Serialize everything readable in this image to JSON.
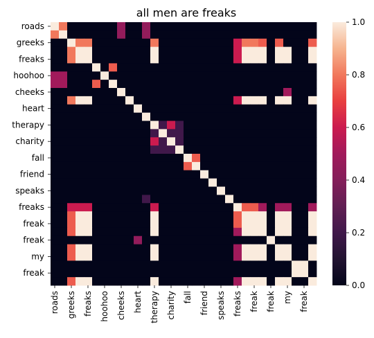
{
  "chart_data": {
    "type": "heatmap",
    "title": "all men are freaks",
    "xlabel": "",
    "ylabel": "",
    "labels": [
      "roads",
      "",
      "greeks",
      "",
      "freaks",
      "",
      "hoohoo",
      "",
      "cheeks",
      "",
      "heart",
      "",
      "therapy",
      "",
      "charity",
      "",
      "fall",
      "",
      "friend",
      "",
      "speaks",
      "",
      "freaks",
      "",
      "freak",
      "",
      "freak",
      "",
      "my",
      "",
      "freak",
      ""
    ],
    "x_tick_labels": [
      "roads",
      "greeks",
      "freaks",
      "hoohoo",
      "cheeks",
      "heart",
      "therapy",
      "charity",
      "fall",
      "friend",
      "speaks",
      "freaks",
      "freak",
      "freak",
      "my",
      "freak"
    ],
    "y_tick_labels": [
      "roads",
      "greeks",
      "freaks",
      "hoohoo",
      "cheeks",
      "heart",
      "therapy",
      "charity",
      "fall",
      "friend",
      "speaks",
      "freaks",
      "freak",
      "freak",
      "my",
      "freak"
    ],
    "colorbar": {
      "min": 0.0,
      "max": 1.0,
      "ticks": [
        "0.0",
        "0.2",
        "0.4",
        "0.6",
        "0.8",
        "1.0"
      ],
      "colormap": "rocket"
    },
    "matrix": [
      [
        1.0,
        0.8,
        0,
        0,
        0,
        0,
        0,
        0,
        0.45,
        0,
        0,
        0.45,
        0,
        0,
        0,
        0,
        0,
        0,
        0,
        0,
        0,
        0,
        0,
        0,
        0,
        0,
        0,
        0,
        0,
        0,
        0,
        0
      ],
      [
        0.8,
        1.0,
        0,
        0,
        0,
        0,
        0,
        0,
        0.45,
        0,
        0,
        0.45,
        0,
        0,
        0,
        0,
        0,
        0,
        0,
        0,
        0,
        0,
        0,
        0,
        0,
        0,
        0,
        0,
        0,
        0,
        0,
        0
      ],
      [
        0,
        0,
        1.0,
        0.8,
        0.8,
        0,
        0,
        0,
        0,
        0,
        0,
        0,
        0.8,
        0,
        0,
        0,
        0,
        0,
        0,
        0,
        0,
        0,
        0.6,
        0.8,
        0.8,
        0.75,
        0,
        0.75,
        0,
        0,
        0,
        0.75
      ],
      [
        0,
        0,
        0.8,
        1.0,
        1.0,
        0,
        0,
        0,
        0,
        0,
        0,
        0,
        1.0,
        0,
        0,
        0,
        0,
        0,
        0,
        0,
        0,
        0,
        0.6,
        1.0,
        1.0,
        1.0,
        0,
        1.0,
        1.0,
        0,
        0,
        1.0
      ],
      [
        0,
        0,
        0.8,
        1.0,
        1.0,
        0,
        0,
        0,
        0,
        0,
        0,
        0,
        1.0,
        0,
        0,
        0,
        0,
        0,
        0,
        0,
        0,
        0,
        0.6,
        1.0,
        1.0,
        1.0,
        0,
        1.0,
        1.0,
        0,
        0,
        1.0
      ],
      [
        0,
        0,
        0,
        0,
        0,
        1.0,
        0,
        0.75,
        0,
        0,
        0,
        0,
        0,
        0,
        0,
        0,
        0,
        0,
        0,
        0,
        0,
        0,
        0,
        0,
        0,
        0,
        0,
        0,
        0,
        0,
        0,
        0
      ],
      [
        0.5,
        0.5,
        0,
        0,
        0,
        0,
        1.0,
        0,
        0,
        0,
        0,
        0,
        0,
        0,
        0,
        0,
        0,
        0,
        0,
        0,
        0,
        0,
        0,
        0,
        0,
        0,
        0,
        0,
        0,
        0,
        0,
        0
      ],
      [
        0.5,
        0.5,
        0,
        0,
        0,
        0.75,
        0,
        1.0,
        0,
        0,
        0,
        0,
        0,
        0,
        0,
        0,
        0,
        0,
        0,
        0,
        0,
        0,
        0,
        0,
        0,
        0,
        0,
        0,
        0,
        0,
        0,
        0
      ],
      [
        0,
        0,
        0,
        0,
        0,
        0,
        0,
        0,
        1.0,
        0,
        0,
        0,
        0,
        0,
        0,
        0,
        0,
        0,
        0,
        0,
        0,
        0,
        0,
        0,
        0,
        0,
        0,
        0,
        0.5,
        0,
        0,
        0
      ],
      [
        0,
        0,
        0.8,
        1.0,
        1.0,
        0,
        0,
        0,
        0,
        1.0,
        0,
        0,
        0,
        0,
        0,
        0,
        0,
        0,
        0,
        0,
        0,
        0,
        0.6,
        1.0,
        1.0,
        1.0,
        0,
        1.0,
        1.0,
        0,
        0,
        1.0
      ],
      [
        0,
        0,
        0,
        0,
        0,
        0,
        0,
        0,
        0,
        0,
        1.0,
        0,
        0,
        0,
        0,
        0,
        0,
        0,
        0,
        0,
        0,
        0,
        0,
        0,
        0,
        0,
        0,
        0,
        0,
        0,
        0,
        0
      ],
      [
        0,
        0,
        0,
        0,
        0,
        0,
        0,
        0,
        0,
        0,
        0,
        1.0,
        0,
        0,
        0,
        0,
        0,
        0,
        0,
        0,
        0,
        0,
        0,
        0,
        0,
        0,
        0,
        0,
        0,
        0,
        0,
        0
      ],
      [
        0,
        0,
        0,
        0,
        0,
        0,
        0,
        0,
        0,
        0,
        0,
        0,
        1.0,
        0.2,
        0.6,
        0.2,
        0,
        0,
        0,
        0,
        0,
        0,
        0,
        0,
        0,
        0,
        0,
        0,
        0,
        0,
        0,
        0
      ],
      [
        0,
        0,
        0,
        0,
        0,
        0,
        0,
        0,
        0,
        0,
        0,
        0,
        0.2,
        1.0,
        0.2,
        0.2,
        0,
        0,
        0,
        0,
        0,
        0,
        0,
        0,
        0,
        0,
        0,
        0,
        0,
        0,
        0,
        0
      ],
      [
        0,
        0,
        0,
        0,
        0,
        0,
        0,
        0,
        0,
        0,
        0,
        0,
        0.6,
        0.2,
        1.0,
        0.2,
        0,
        0,
        0,
        0,
        0,
        0,
        0,
        0,
        0,
        0,
        0,
        0,
        0,
        0,
        0,
        0
      ],
      [
        0,
        0,
        0,
        0,
        0,
        0,
        0,
        0,
        0,
        0,
        0,
        0,
        0.2,
        0.2,
        0.2,
        1.0,
        0,
        0,
        0,
        0,
        0,
        0,
        0,
        0,
        0,
        0,
        0,
        0,
        0,
        0,
        0,
        0
      ],
      [
        0,
        0,
        0,
        0,
        0,
        0,
        0,
        0,
        0,
        0,
        0,
        0,
        0,
        0,
        0,
        0,
        1.0,
        0.75,
        0,
        0,
        0,
        0,
        0,
        0,
        0,
        0,
        0,
        0,
        0,
        0,
        0,
        0
      ],
      [
        0,
        0,
        0,
        0,
        0,
        0,
        0,
        0,
        0,
        0,
        0,
        0,
        0,
        0,
        0,
        0,
        0.75,
        1.0,
        0,
        0,
        0,
        0,
        0,
        0,
        0,
        0,
        0,
        0,
        0,
        0,
        0,
        0
      ],
      [
        0,
        0,
        0,
        0,
        0,
        0,
        0,
        0,
        0,
        0,
        0,
        0,
        0,
        0,
        0,
        0,
        0,
        0,
        1.0,
        0,
        0,
        0,
        0,
        0,
        0,
        0,
        0,
        0,
        0,
        0,
        0,
        0
      ],
      [
        0,
        0,
        0,
        0,
        0,
        0,
        0,
        0,
        0,
        0,
        0,
        0,
        0,
        0,
        0,
        0,
        0,
        0,
        0,
        1.0,
        0,
        0,
        0,
        0,
        0,
        0,
        0,
        0,
        0,
        0,
        0,
        0
      ],
      [
        0,
        0,
        0,
        0,
        0,
        0,
        0,
        0,
        0,
        0,
        0,
        0,
        0,
        0,
        0,
        0,
        0,
        0,
        0,
        0,
        1.0,
        0,
        0,
        0,
        0,
        0,
        0,
        0,
        0,
        0,
        0,
        0
      ],
      [
        0,
        0,
        0,
        0,
        0,
        0,
        0,
        0,
        0,
        0,
        0,
        0.2,
        0,
        0,
        0,
        0,
        0,
        0,
        0,
        0,
        0,
        1.0,
        0,
        0,
        0,
        0,
        0,
        0,
        0,
        0,
        0,
        0
      ],
      [
        0,
        0,
        0.6,
        0.6,
        0.6,
        0,
        0,
        0,
        0,
        0,
        0,
        0,
        0.6,
        0,
        0,
        0,
        0,
        0,
        0,
        0,
        0,
        0,
        1.0,
        0.75,
        0.75,
        0.5,
        0,
        0.5,
        0.5,
        0,
        0,
        0.5
      ],
      [
        0,
        0,
        0.75,
        1.0,
        1.0,
        0,
        0,
        0,
        0,
        0,
        0,
        0,
        1.0,
        0,
        0,
        0,
        0,
        0,
        0,
        0,
        0,
        0,
        0.75,
        1.0,
        1.0,
        1.0,
        0,
        1.0,
        1.0,
        0,
        0,
        1.0
      ],
      [
        0,
        0,
        0.75,
        1.0,
        1.0,
        0,
        0,
        0,
        0,
        0,
        0,
        0,
        1.0,
        0,
        0,
        0,
        0,
        0,
        0,
        0,
        0,
        0,
        0.75,
        1.0,
        1.0,
        1.0,
        0,
        1.0,
        1.0,
        0,
        0,
        1.0
      ],
      [
        0,
        0,
        0.75,
        1.0,
        1.0,
        0,
        0,
        0,
        0,
        0,
        0,
        0,
        1.0,
        0,
        0,
        0,
        0,
        0,
        0,
        0,
        0,
        0,
        0.5,
        1.0,
        1.0,
        1.0,
        0,
        1.0,
        1.0,
        0,
        0,
        1.0
      ],
      [
        0,
        0,
        0,
        0,
        0,
        0,
        0,
        0,
        0,
        0,
        0.45,
        0,
        0,
        0,
        0,
        0,
        0,
        0,
        0,
        0,
        0,
        0,
        0,
        0,
        0,
        0,
        1.0,
        0,
        0,
        0,
        0,
        0
      ],
      [
        0,
        0,
        0.75,
        1.0,
        1.0,
        0,
        0,
        0,
        0,
        0,
        0,
        0,
        1.0,
        0,
        0,
        0,
        0,
        0,
        0,
        0,
        0,
        0,
        0.5,
        1.0,
        1.0,
        1.0,
        0,
        1.0,
        1.0,
        0,
        0,
        1.0
      ],
      [
        0,
        0,
        0.75,
        1.0,
        1.0,
        0,
        0,
        0,
        0,
        0,
        0,
        0,
        1.0,
        0,
        0,
        0,
        0,
        0,
        0,
        0,
        0,
        0,
        0.5,
        1.0,
        1.0,
        1.0,
        0,
        1.0,
        1.0,
        0,
        0,
        1.0
      ],
      [
        0,
        0,
        0,
        0,
        0,
        0,
        0,
        0,
        0,
        0,
        0,
        0,
        0,
        0,
        0,
        0,
        0,
        0,
        0,
        0,
        0,
        0,
        0,
        0,
        0,
        0,
        0,
        0,
        0,
        1.0,
        1.0,
        0
      ],
      [
        0,
        0,
        0,
        0,
        0,
        0,
        0,
        0,
        0,
        0,
        0,
        0,
        0,
        0,
        0,
        0,
        0,
        0,
        0,
        0,
        0,
        0,
        0,
        0,
        0,
        0,
        0,
        0,
        0,
        1.0,
        1.0,
        0
      ],
      [
        0,
        0,
        0.75,
        1.0,
        1.0,
        0,
        0,
        0,
        0,
        0,
        0,
        0,
        1.0,
        0,
        0,
        0,
        0,
        0,
        0,
        0,
        0,
        0,
        0.5,
        1.0,
        1.0,
        1.0,
        0,
        1.0,
        1.0,
        0,
        0,
        1.0
      ]
    ]
  }
}
